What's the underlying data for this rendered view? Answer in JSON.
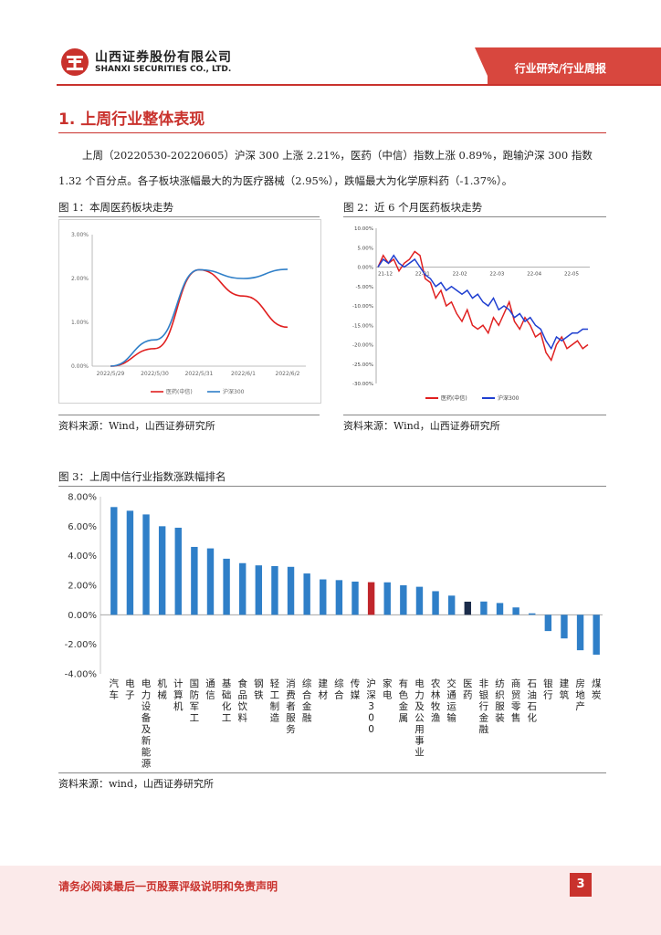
{
  "header": {
    "company_cn": "山西证券股份有限公司",
    "company_en": "SHANXI SECURITIES CO., LTD.",
    "report_type": "行业研究/行业周报"
  },
  "section": {
    "title": "1. 上周行业整体表现",
    "para_line1": "上周（20220530-20220605）沪深 300 上涨 2.21%，医药（中信）指数上涨 0.89%，跑输沪深 300 指数",
    "para_line2": "1.32 个百分点。各子板块涨幅最大的为医疗器械（2.95%），跌幅最大为化学原料药（-1.37%）。"
  },
  "figure1": {
    "caption": "图 1：本周医药板块走势",
    "source": "资料来源：Wind，山西证券研究所",
    "chart_data": {
      "type": "line",
      "x": [
        "2022/5/29",
        "2022/5/30",
        "2022/5/31",
        "2022/6/1",
        "2022/6/2"
      ],
      "ylim": [
        0,
        3
      ],
      "yticks": [
        "0.00%",
        "1.00%",
        "2.00%",
        "3.00%"
      ],
      "series": [
        {
          "name": "医药(中信)",
          "color": "#e02020",
          "values": [
            0.0,
            0.4,
            2.2,
            1.6,
            0.89
          ]
        },
        {
          "name": "沪深300",
          "color": "#2f7fc8",
          "values": [
            0.0,
            0.6,
            2.2,
            2.0,
            2.21
          ]
        }
      ]
    }
  },
  "figure2": {
    "caption": "图 2：近 6 个月医药板块走势",
    "source": "资料来源：Wind，山西证券研究所",
    "chart_data": {
      "type": "line",
      "x_ticks": [
        "21-12",
        "22-01",
        "22-02",
        "22-03",
        "22-04",
        "22-05"
      ],
      "ylim": [
        -30,
        10
      ],
      "yticks": [
        "10.00%",
        "5.00%",
        "0.00%",
        "-5.00%",
        "-10.00%",
        "-15.00%",
        "-20.00%",
        "-25.00%",
        "-30.00%"
      ],
      "series": [
        {
          "name": "医药(中信)",
          "color": "#e02020",
          "values": [
            0,
            3,
            1,
            2,
            -1,
            1,
            2,
            4,
            3,
            -3,
            -4,
            -8,
            -6,
            -10,
            -9,
            -12,
            -14,
            -11,
            -15,
            -16,
            -15,
            -17,
            -13,
            -15,
            -12,
            -9,
            -14,
            -16,
            -13,
            -15,
            -18,
            -17,
            -22,
            -24,
            -20,
            -18,
            -21,
            -20,
            -19,
            -21,
            -20
          ]
        },
        {
          "name": "沪深300",
          "color": "#1f3fd0",
          "values": [
            0,
            2,
            1,
            3,
            1,
            0,
            1,
            2,
            0,
            -2,
            -3,
            -5,
            -4,
            -6,
            -5,
            -6,
            -7,
            -6,
            -8,
            -7,
            -9,
            -10,
            -8,
            -11,
            -10,
            -11,
            -13,
            -12,
            -14,
            -13,
            -15,
            -16,
            -19,
            -21,
            -18,
            -19,
            -18,
            -17,
            -17,
            -16,
            -16
          ]
        }
      ]
    }
  },
  "figure3": {
    "caption": "图 3：上周中信行业指数涨跌幅排名",
    "source": "资料来源：wind，山西证券研究所",
    "chart_data": {
      "type": "bar",
      "ylim": [
        -4,
        8
      ],
      "yticks": [
        "8.00%",
        "6.00%",
        "4.00%",
        "2.00%",
        "0.00%",
        "-2.00%",
        "-4.00%"
      ],
      "categories": [
        "汽车",
        "电子",
        "电力设备及新能源",
        "机械",
        "计算机",
        "国防军工",
        "通信",
        "基础化工",
        "食品饮料",
        "钢铁",
        "轻工制造",
        "消费者服务",
        "综合金融",
        "建材",
        "综合",
        "传媒",
        "沪深300",
        "家电",
        "有色金属",
        "电力及公用事业",
        "农林牧渔",
        "交通运输",
        "医药",
        "非银行金融",
        "纺织服装",
        "商贸零售",
        "石油石化",
        "银行",
        "建筑",
        "房地产",
        "煤炭"
      ],
      "values": [
        7.3,
        7.05,
        6.8,
        6.0,
        5.9,
        4.6,
        4.5,
        3.8,
        3.5,
        3.35,
        3.3,
        3.25,
        2.8,
        2.4,
        2.35,
        2.25,
        2.21,
        2.2,
        2.0,
        1.9,
        1.6,
        1.3,
        0.89,
        0.9,
        0.8,
        0.5,
        0.1,
        -1.1,
        -1.6,
        -2.4,
        -2.7
      ],
      "colors": {
        "default": "#2f7fc8",
        "highlight_hs300": "#c0262b",
        "highlight_pharma": "#1b2c4a"
      }
    }
  },
  "footer": {
    "disclaimer": "请务必阅读最后一页股票评级说明和免责声明",
    "page": "3"
  }
}
